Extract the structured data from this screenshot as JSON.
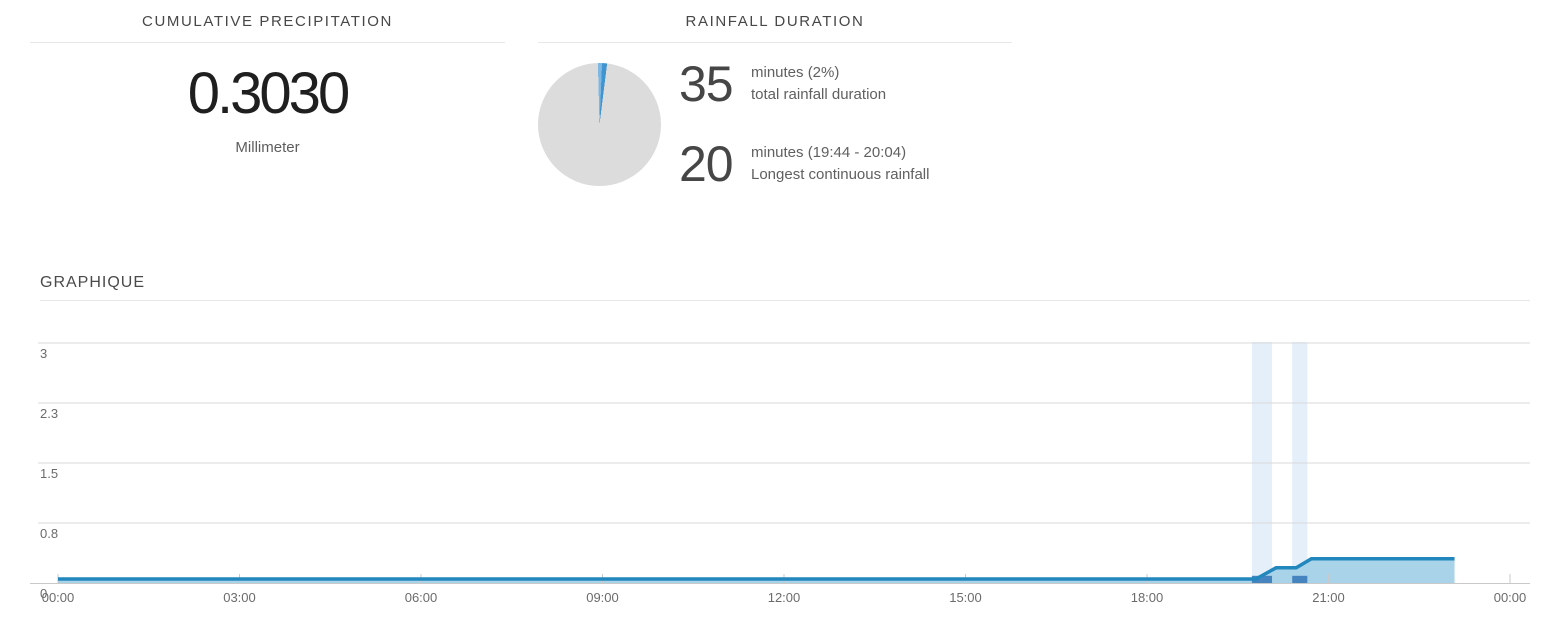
{
  "cards": {
    "cumulative": {
      "title": "CUMULATIVE PRECIPITATION",
      "value": "0.3030",
      "unit": "Millimeter"
    },
    "duration": {
      "title": "RAINFALL DURATION",
      "pie": {
        "percent_of_day": 2.4,
        "start_deg": -1.5,
        "blue_light": "#7eb7e2",
        "blue": "#4095d1",
        "gray": "#dcdcdc"
      },
      "stats": [
        {
          "value": "35",
          "detail": "minutes (2%)",
          "caption": "total rainfall duration"
        },
        {
          "value": "20",
          "detail": "minutes (19:44 - 20:04)",
          "caption": "Longest continuous rainfall"
        }
      ]
    }
  },
  "graph": {
    "title": "GRAPHIQUE"
  },
  "chart_data": {
    "type": "area",
    "title": "GRAPHIQUE",
    "xlabel": "",
    "ylabel": "",
    "x_unit": "time of day (minutes from 00:00)",
    "x_ticks": [
      "00:00",
      "03:00",
      "06:00",
      "09:00",
      "12:00",
      "15:00",
      "18:00",
      "21:00",
      "00:00"
    ],
    "x_range_minutes": [
      0,
      1440
    ],
    "ylim": [
      0,
      3
    ],
    "grid": "horizontal",
    "legend": null,
    "y_ticks": [
      {
        "label": "3",
        "value": 3
      },
      {
        "label": "2.3",
        "value": 2.25
      },
      {
        "label": "1.5",
        "value": 1.5
      },
      {
        "label": "0.8",
        "value": 0.75
      },
      {
        "label": "0",
        "value": 0
      }
    ],
    "series": [
      {
        "name": "Cumulative precipitation (Millimeter)",
        "points": [
          [
            0,
            0.05
          ],
          [
            1188,
            0.05
          ],
          [
            1208,
            0.19
          ],
          [
            1228,
            0.19
          ],
          [
            1243,
            0.303
          ],
          [
            1385,
            0.303
          ]
        ]
      }
    ],
    "rain_bands": [
      {
        "start_min": 1184,
        "end_min": 1204,
        "label": "19:44 - 20:04"
      },
      {
        "start_min": 1224,
        "end_min": 1239,
        "label": "20:24 - 20:39"
      }
    ],
    "intensity_bars": [
      {
        "start_min": 1184,
        "end_min": 1194,
        "value": 0.09
      },
      {
        "start_min": 1194,
        "end_min": 1204,
        "value": 0.09
      },
      {
        "start_min": 1224,
        "end_min": 1239,
        "value": 0.09
      }
    ],
    "colors": {
      "line": "#2287bd",
      "fill": "#a9d3e9",
      "band": "#e4effa",
      "bar": "#4684c0",
      "gridline": "#dadada",
      "axis": "#c9c9c9",
      "tick_text": "#6b6b6b"
    }
  }
}
